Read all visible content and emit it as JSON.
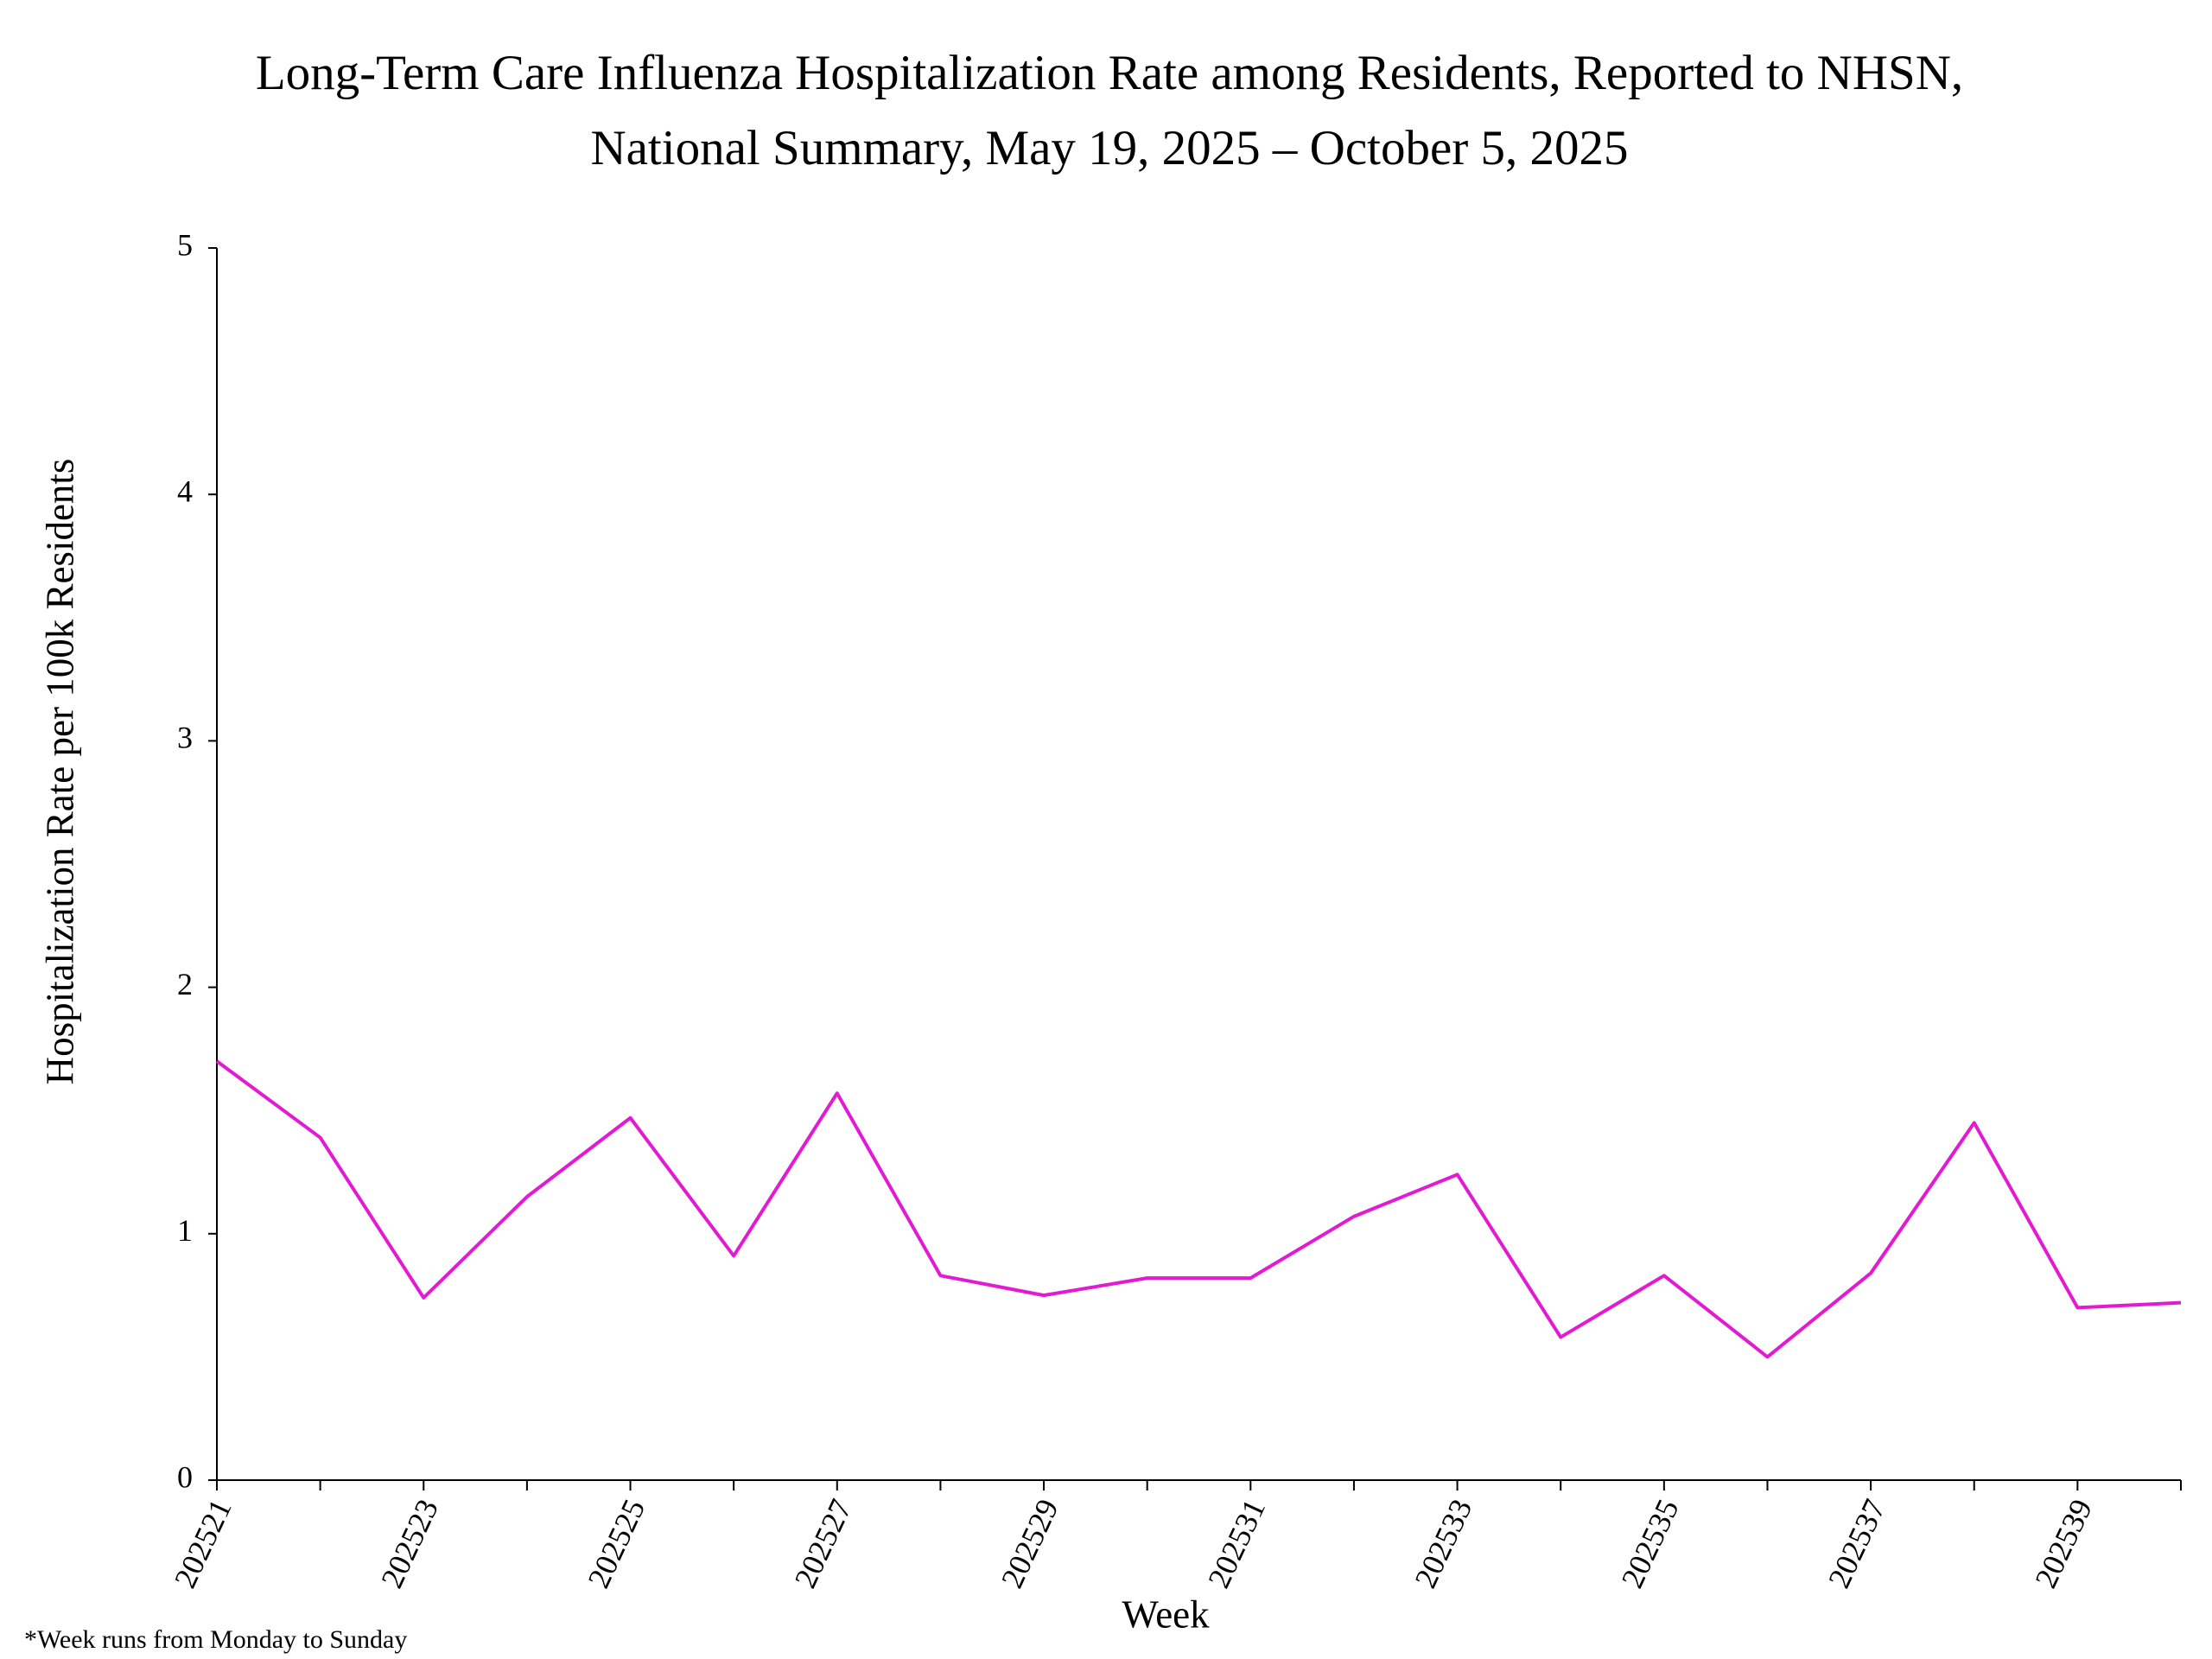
{
  "chart_data": {
    "type": "line",
    "title": "Long-Term Care Influenza Hospitalization Rate among Residents, Reported to NHSN,",
    "subtitle": "National Summary, May 19, 2025 – October 5, 2025",
    "x_label": "Week",
    "y_label": "Hospitalization Rate per 100k Residents",
    "note": "*Week runs from Monday to Sunday",
    "categories": [
      "202521",
      null,
      "202523",
      null,
      "202525",
      null,
      "202527",
      null,
      "202529",
      null,
      "202531",
      null,
      "202533",
      null,
      "202535",
      null,
      "202537",
      null,
      "202539",
      null
    ],
    "series": [
      {
        "color": "#e31ad4",
        "values": [
          1.7,
          1.39,
          0.74,
          1.15,
          1.47,
          0.91,
          1.57,
          0.83,
          0.75,
          0.82,
          0.82,
          1.07,
          1.24,
          0.58,
          0.83,
          0.5,
          0.84,
          1.45,
          0.7,
          0.72
        ]
      }
    ],
    "ylim": [
      0,
      5
    ],
    "yticks": [
      0,
      1,
      2,
      3,
      4,
      5
    ],
    "grid": false
  }
}
